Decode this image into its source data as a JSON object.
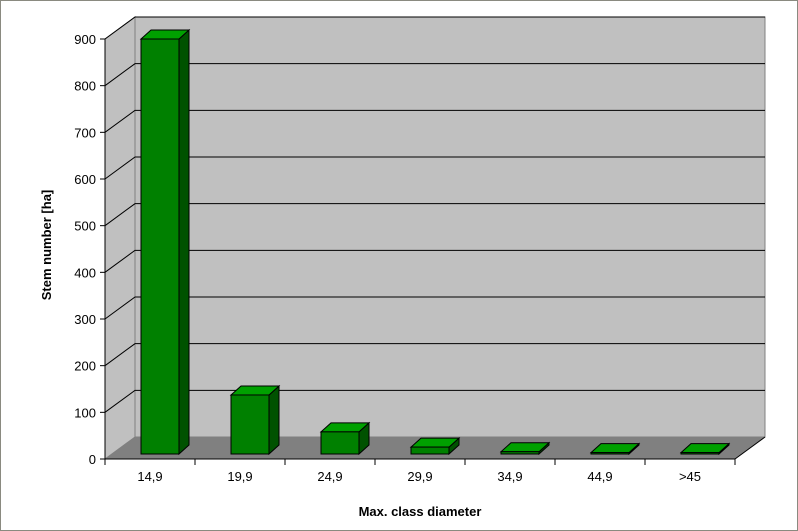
{
  "chart_data": {
    "type": "bar",
    "style": "3d-column",
    "categories": [
      "14,9",
      "19,9",
      "24,9",
      "29,9",
      "34,9",
      "44,9",
      ">45"
    ],
    "values": [
      900,
      128,
      48,
      15,
      5,
      3,
      3
    ],
    "xlabel": "Max. class diameter",
    "ylabel": "Stem number [ha]",
    "ylim": [
      0,
      900
    ],
    "yticks": [
      "0",
      "100",
      "200",
      "300",
      "400",
      "500",
      "600",
      "700",
      "800",
      "900"
    ],
    "grid": true,
    "legend": "none",
    "colors": {
      "bar_front": "#008000",
      "bar_top": "#00a000",
      "bar_side": "#005200",
      "wall": "#c0c0c0",
      "floor": "#808080",
      "gridline": "#000000"
    }
  }
}
